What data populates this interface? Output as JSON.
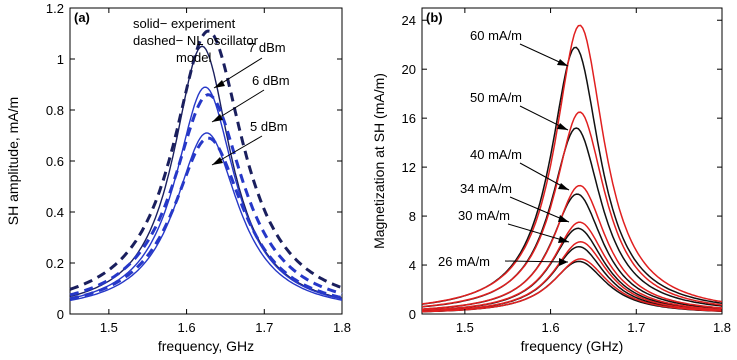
{
  "chart_data": [
    {
      "type": "line",
      "panel_label": "(a)",
      "xlabel": "frequency, GHz",
      "ylabel": "SH amplitude, mA/m",
      "xlim": [
        1.45,
        1.8
      ],
      "ylim": [
        0,
        1.2
      ],
      "xticks": [
        "1.5",
        "1.6",
        "1.7",
        "1.8"
      ],
      "yticks": [
        "0",
        "0.2",
        "0.4",
        "0.6",
        "0.8",
        "1",
        "1.2"
      ],
      "legend_text": [
        "solid− experiment",
        "dashed− NL oscillator",
        "model"
      ],
      "annotations": [
        "7 dBm",
        "6 dBm",
        "5 dBm"
      ],
      "colors": {
        "dark": "#1a1f5e",
        "blue": "#2638c8"
      },
      "series": [
        {
          "label": "7 dBm",
          "style": "solid",
          "peak_x": 1.62,
          "peak_y": 1.05,
          "width": 0.045
        },
        {
          "label": "6 dBm",
          "style": "solid",
          "peak_x": 1.624,
          "peak_y": 0.89,
          "width": 0.047
        },
        {
          "label": "5 dBm",
          "style": "solid",
          "peak_x": 1.626,
          "peak_y": 0.71,
          "width": 0.05
        },
        {
          "label": "7 dBm",
          "style": "dashed",
          "peak_x": 1.628,
          "peak_y": 1.11,
          "width": 0.055
        },
        {
          "label": "6 dBm",
          "style": "dashed",
          "peak_x": 1.628,
          "peak_y": 0.86,
          "width": 0.055
        },
        {
          "label": "5 dBm",
          "style": "dashed",
          "peak_x": 1.628,
          "peak_y": 0.69,
          "width": 0.055
        }
      ]
    },
    {
      "type": "line",
      "panel_label": "(b)",
      "xlabel": "frequency (GHz)",
      "ylabel": "Magnetization at SH (mA/m)",
      "xlim": [
        1.45,
        1.8
      ],
      "ylim": [
        0,
        25
      ],
      "xticks": [
        "1.5",
        "1.6",
        "1.7",
        "1.8"
      ],
      "yticks": [
        "0",
        "4",
        "8",
        "12",
        "16",
        "20",
        "24"
      ],
      "annotations": [
        "60 mA/m",
        "50 mA/m",
        "40 mA/m",
        "34 mA/m",
        "30 mA/m",
        "26 mA/m"
      ],
      "colors": {
        "black": "#111111",
        "red": "#e02020"
      },
      "series": [
        {
          "label": "60 mA/m",
          "color": "black",
          "peak_x": 1.629,
          "peak_y": 21.8,
          "width": 0.035
        },
        {
          "label": "60 mA/m",
          "color": "red",
          "peak_x": 1.634,
          "peak_y": 23.6,
          "width": 0.035
        },
        {
          "label": "50 mA/m",
          "color": "black",
          "peak_x": 1.63,
          "peak_y": 15.2,
          "width": 0.036
        },
        {
          "label": "50 mA/m",
          "color": "red",
          "peak_x": 1.634,
          "peak_y": 16.5,
          "width": 0.036
        },
        {
          "label": "40 mA/m",
          "color": "black",
          "peak_x": 1.631,
          "peak_y": 9.8,
          "width": 0.037
        },
        {
          "label": "40 mA/m",
          "color": "red",
          "peak_x": 1.634,
          "peak_y": 10.5,
          "width": 0.037
        },
        {
          "label": "34 mA/m",
          "color": "black",
          "peak_x": 1.632,
          "peak_y": 7.0,
          "width": 0.038
        },
        {
          "label": "34 mA/m",
          "color": "red",
          "peak_x": 1.634,
          "peak_y": 7.5,
          "width": 0.038
        },
        {
          "label": "30 mA/m",
          "color": "black",
          "peak_x": 1.633,
          "peak_y": 5.5,
          "width": 0.038
        },
        {
          "label": "30 mA/m",
          "color": "red",
          "peak_x": 1.635,
          "peak_y": 5.9,
          "width": 0.038
        },
        {
          "label": "26 mA/m",
          "color": "black",
          "peak_x": 1.633,
          "peak_y": 4.3,
          "width": 0.039
        },
        {
          "label": "26 mA/m",
          "color": "red",
          "peak_x": 1.635,
          "peak_y": 4.5,
          "width": 0.039
        }
      ]
    }
  ]
}
